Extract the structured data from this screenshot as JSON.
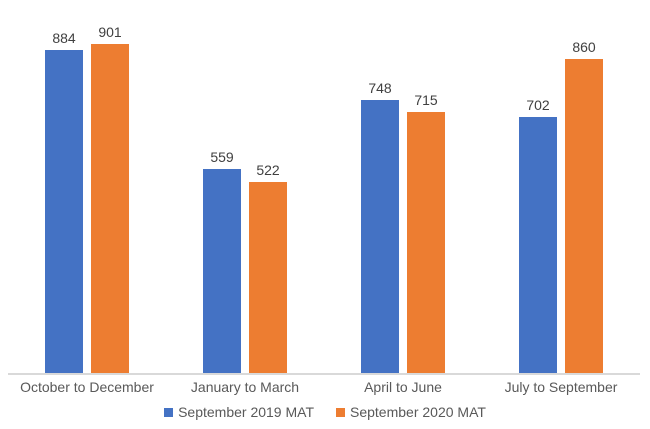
{
  "chart_data": {
    "type": "bar",
    "title": "",
    "xlabel": "",
    "ylabel": "",
    "categories": [
      "October to December",
      "January to March",
      "April to June",
      "July to September"
    ],
    "series": [
      {
        "name": "September 2019 MAT",
        "color": "#4472C4",
        "values": [
          884,
          559,
          748,
          702
        ]
      },
      {
        "name": "September 2020 MAT",
        "color": "#ED7D31",
        "values": [
          901,
          522,
          715,
          860
        ]
      }
    ],
    "ylim": [
      0,
      1000
    ],
    "grid": false,
    "y_axis_visible": false,
    "data_labels": true,
    "legend_position": "bottom"
  },
  "colors": {
    "axis_line": "#D9D9D9",
    "data_label_text": "#404040",
    "category_text": "#595959",
    "background": "#FFFFFF"
  }
}
